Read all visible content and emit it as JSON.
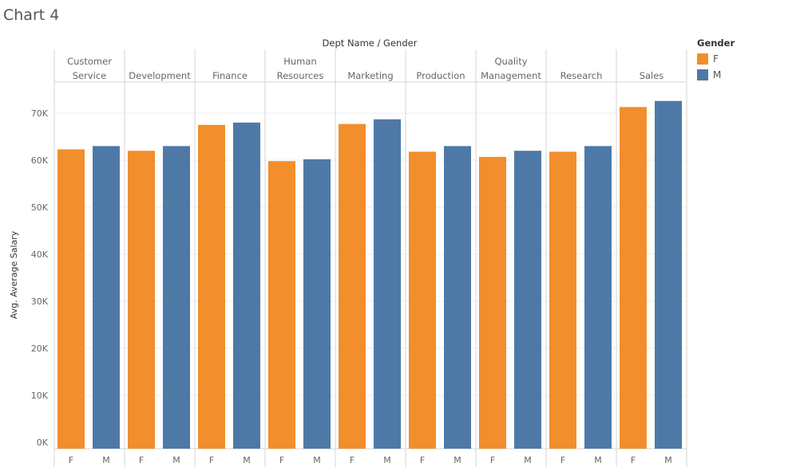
{
  "page": {
    "title": "Chart 4"
  },
  "legend": {
    "title": "Gender",
    "items": [
      {
        "label": "F",
        "color": "#f28e2b"
      },
      {
        "label": "M",
        "color": "#4e79a7"
      }
    ]
  },
  "chart_data": {
    "type": "bar",
    "title": "Chart 4",
    "column_header": "Dept Name / Gender",
    "ylabel": "Avg. Average Salary",
    "ylim": [
      0,
      76000
    ],
    "yticks": [
      0,
      10000,
      20000,
      30000,
      40000,
      50000,
      60000,
      70000
    ],
    "ytick_labels": [
      "0K",
      "10K",
      "20K",
      "30K",
      "40K",
      "50K",
      "60K",
      "70K"
    ],
    "categories": [
      [
        "Customer",
        "Service"
      ],
      [
        "Development"
      ],
      [
        "Finance"
      ],
      [
        "Human",
        "Resources"
      ],
      [
        "Marketing"
      ],
      [
        "Production"
      ],
      [
        "Quality",
        "Management"
      ],
      [
        "Research"
      ],
      [
        "Sales"
      ]
    ],
    "subcategories": [
      "F",
      "M"
    ],
    "series": [
      {
        "name": "F",
        "color": "#f28e2b",
        "values": [
          62300,
          62000,
          67500,
          59800,
          67700,
          61800,
          60700,
          61800,
          71300
        ]
      },
      {
        "name": "M",
        "color": "#4e79a7",
        "values": [
          63000,
          63000,
          68000,
          60200,
          68700,
          63000,
          62000,
          63000,
          72600
        ]
      }
    ],
    "grid": true,
    "legend_position": "right"
  }
}
